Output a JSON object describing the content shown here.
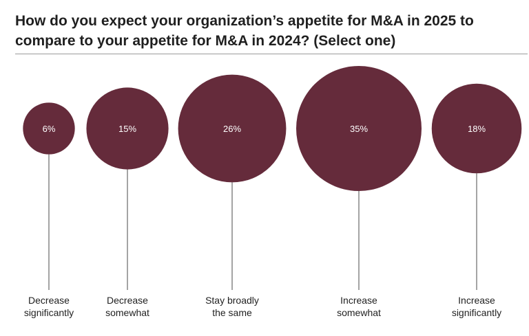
{
  "chart_data": {
    "type": "bubble",
    "title": "How do you expect your organization’s appetite for M&A in 2025 to compare to your appetite for M&A in 2024? (Select one)",
    "categories": [
      [
        "Decrease",
        "significantly"
      ],
      [
        "Decrease",
        "somewhat"
      ],
      [
        "Stay broadly",
        "the same"
      ],
      [
        "Increase",
        "somewhat"
      ],
      [
        "Increase",
        "significantly"
      ]
    ],
    "values": [
      6,
      15,
      26,
      35,
      18
    ],
    "value_labels": [
      "6%",
      "15%",
      "26%",
      "35%",
      "18%"
    ],
    "unit": "%",
    "grid": false,
    "legend": "none",
    "colors": {
      "bubble": "#652b3b",
      "connector": "#4a4a4a",
      "rule": "#9a9a9a"
    }
  }
}
